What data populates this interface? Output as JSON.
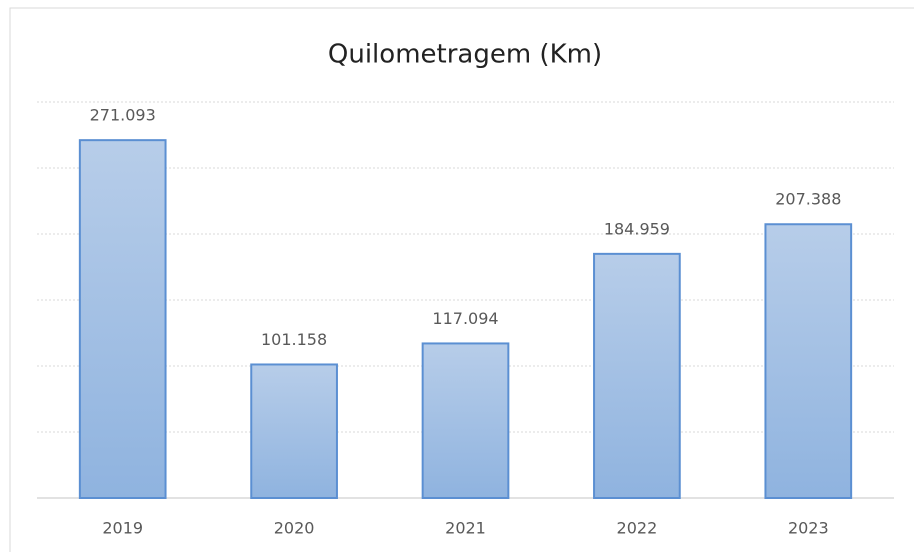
{
  "chart_data": {
    "type": "bar",
    "title": "Quilometragem (Km)",
    "categories": [
      "2019",
      "2020",
      "2021",
      "2022",
      "2023"
    ],
    "values": [
      271093,
      101158,
      117094,
      184959,
      207388
    ],
    "value_labels": [
      "271.093",
      "101.158",
      "117.094",
      "184.959",
      "207.388"
    ],
    "color": "#9dbde4",
    "ylim": [
      0,
      300000
    ],
    "yticks": [
      0,
      50000,
      100000,
      150000,
      200000,
      250000,
      300000
    ],
    "grid": true
  }
}
